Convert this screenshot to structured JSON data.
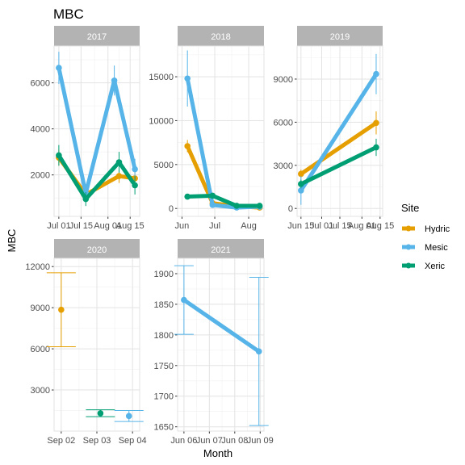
{
  "chart_data": {
    "title": "MBC",
    "xlabel": "Month",
    "ylabel": "MBC",
    "legend": {
      "title": "Site",
      "position": "right",
      "entries": [
        {
          "name": "Hydric",
          "color": "#E69F00"
        },
        {
          "name": "Mesic",
          "color": "#56B4E9"
        },
        {
          "name": "Xeric",
          "color": "#009E73"
        }
      ]
    },
    "facets": [
      {
        "name": "2017",
        "type": "line",
        "x_ticks": [
          "Jul 01",
          "Jul 15",
          "Aug 01",
          "Aug 15"
        ],
        "x_tick_pos": [
          0,
          14,
          31,
          45
        ],
        "xlim": [
          -3,
          51
        ],
        "y_ticks": [
          2000,
          4000,
          6000
        ],
        "ylim": [
          200,
          7600
        ],
        "series": [
          {
            "name": "Hydric",
            "points": [
              {
                "x": 0,
                "y": 2750,
                "err": 350
              },
              {
                "x": 17,
                "y": 1150,
                "err": 300
              },
              {
                "x": 38,
                "y": 1950,
                "err": 300
              },
              {
                "x": 48,
                "y": 1850,
                "err": 400
              }
            ]
          },
          {
            "name": "Mesic",
            "points": [
              {
                "x": 0,
                "y": 6650,
                "err": 700
              },
              {
                "x": 17,
                "y": 1200,
                "err": 250
              },
              {
                "x": 35,
                "y": 6100,
                "err": 650
              },
              {
                "x": 48,
                "y": 2250,
                "err": 450
              }
            ]
          },
          {
            "name": "Xeric",
            "points": [
              {
                "x": 0,
                "y": 2850,
                "err": 450
              },
              {
                "x": 17,
                "y": 950,
                "err": 300
              },
              {
                "x": 38,
                "y": 2550,
                "err": 450
              },
              {
                "x": 48,
                "y": 1550,
                "err": 400
              }
            ]
          }
        ]
      },
      {
        "name": "2018",
        "type": "line",
        "x_ticks": [
          "Jun",
          "Jul",
          "Aug"
        ],
        "x_tick_pos": [
          0,
          30,
          61
        ],
        "xlim": [
          -4,
          75
        ],
        "y_ticks": [
          0,
          5000,
          10000,
          15000
        ],
        "ylim": [
          -900,
          18500
        ],
        "series": [
          {
            "name": "Hydric",
            "points": [
              {
                "x": 5,
                "y": 7100,
                "err": 700
              },
              {
                "x": 28,
                "y": 600,
                "err": 250
              },
              {
                "x": 50,
                "y": 250,
                "err": 150
              },
              {
                "x": 71,
                "y": 100,
                "err": 100
              }
            ]
          },
          {
            "name": "Mesic",
            "points": [
              {
                "x": 5,
                "y": 14800,
                "err": 3200
              },
              {
                "x": 28,
                "y": 400,
                "err": 200
              },
              {
                "x": 50,
                "y": 100,
                "err": 100
              },
              {
                "x": 71,
                "y": 200,
                "err": 100
              }
            ]
          },
          {
            "name": "Xeric",
            "points": [
              {
                "x": 5,
                "y": 1350,
                "err": 200
              },
              {
                "x": 28,
                "y": 1450,
                "err": 200
              },
              {
                "x": 50,
                "y": 300,
                "err": 100
              },
              {
                "x": 71,
                "y": 300,
                "err": 100
              }
            ]
          }
        ]
      },
      {
        "name": "2019",
        "type": "line",
        "x_ticks": [
          "Jun 15",
          "Jul 01",
          "Jul 15",
          "Aug 01",
          "Aug 15"
        ],
        "x_tick_pos": [
          0,
          16,
          30,
          47,
          61
        ],
        "xlim": [
          -3,
          63
        ],
        "y_ticks": [
          0,
          3000,
          6000,
          9000
        ],
        "ylim": [
          -550,
          11300
        ],
        "series": [
          {
            "name": "Hydric",
            "points": [
              {
                "x": 0,
                "y": 2400,
                "err": 300
              },
              {
                "x": 58,
                "y": 5950,
                "err": 800
              }
            ]
          },
          {
            "name": "Mesic",
            "points": [
              {
                "x": 0,
                "y": 1250,
                "err": 1000
              },
              {
                "x": 58,
                "y": 9350,
                "err": 1400
              }
            ]
          },
          {
            "name": "Xeric",
            "points": [
              {
                "x": 0,
                "y": 1700,
                "err": 300
              },
              {
                "x": 58,
                "y": 4250,
                "err": 600
              }
            ]
          }
        ]
      },
      {
        "name": "2020",
        "type": "point",
        "x_ticks": [
          "Sep 02",
          "Sep 03",
          "Sep 04"
        ],
        "x_tick_pos": [
          0,
          1,
          2
        ],
        "xlim": [
          -0.2,
          2.2
        ],
        "y_ticks": [
          3000,
          6000,
          9000,
          12000
        ],
        "ylim": [
          0,
          12600
        ],
        "series": [
          {
            "name": "Hydric",
            "points": [
              {
                "x": 0,
                "y": 8850,
                "err": 2700
              }
            ]
          },
          {
            "name": "Xeric",
            "points": [
              {
                "x": 1.1,
                "y": 1300,
                "err": 250
              }
            ]
          },
          {
            "name": "Mesic",
            "points": [
              {
                "x": 1.9,
                "y": 1100,
                "err": 400
              }
            ]
          }
        ]
      },
      {
        "name": "2021",
        "type": "line",
        "x_ticks": [
          "Jun 06",
          "Jun 07",
          "Jun 08",
          "Jun 09"
        ],
        "x_tick_pos": [
          0,
          1,
          2,
          3
        ],
        "xlim": [
          -0.25,
          3.15
        ],
        "y_ticks": [
          1650,
          1700,
          1750,
          1800,
          1850,
          1900
        ],
        "ylim": [
          1643,
          1925
        ],
        "series": [
          {
            "name": "Mesic",
            "points": [
              {
                "x": 0,
                "y": 1857,
                "err": 56
              },
              {
                "x": 2.95,
                "y": 1773,
                "err": 121
              }
            ]
          }
        ]
      }
    ]
  }
}
